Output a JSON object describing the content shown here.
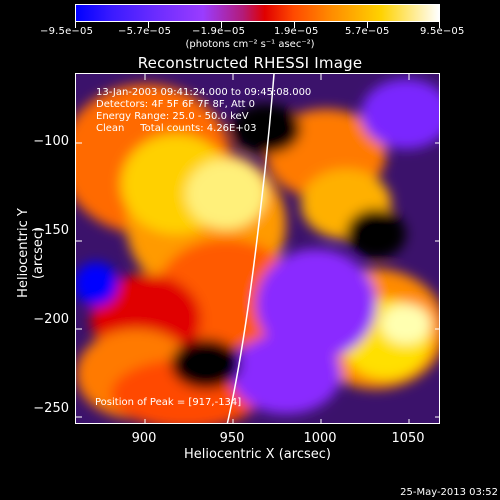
{
  "colorbar": {
    "tick_labels": [
      "−9.5e−05",
      "−5.7e−05",
      "−1.9e−05",
      "1.9e−05",
      "5.7e−05",
      "9.5e−05"
    ],
    "units_label": "(photons cm⁻² s⁻¹ asec⁻²)"
  },
  "plot": {
    "title": "Reconstructed RHESSI Image",
    "annotation": {
      "line1": "13-Jan-2003 09:41:24.000 to 09:45:08.000",
      "line2": "Detectors: 4F 5F 6F 7F 8F, Att 0",
      "line3": "Energy Range: 25.0 - 50.0 keV",
      "line4": "Clean     Total counts: 4.26E+03"
    },
    "peak_text": "Position of Peak = [917,-134]",
    "x_axis": {
      "label": "Heliocentric X (arcsec)",
      "ticks": [
        "900",
        "950",
        "1000",
        "1050"
      ],
      "range": [
        862,
        1058
      ]
    },
    "y_axis": {
      "label": "Heliocentric Y (arcsec)",
      "ticks": [
        "−100",
        "−150",
        "−200",
        "−250"
      ],
      "range": [
        -254,
        -70
      ]
    }
  },
  "footer": {
    "timestamp": "25-May-2013 03:52"
  }
}
